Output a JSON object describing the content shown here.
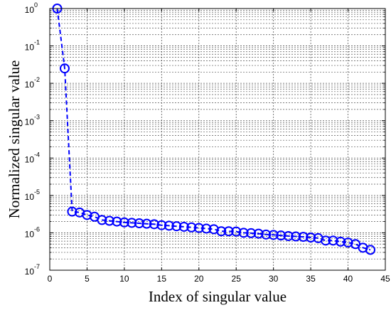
{
  "chart_data": {
    "type": "line",
    "title": "",
    "xlabel": "Index of singular  value",
    "ylabel": "Normalized  singular  value",
    "xlim": [
      0,
      45
    ],
    "ylim": [
      1e-07,
      1
    ],
    "yscale": "log",
    "grid": true,
    "grid_style": "dotted",
    "x_ticks": [
      "0",
      "5",
      "10",
      "15",
      "20",
      "25",
      "30",
      "35",
      "40",
      "45"
    ],
    "y_ticks": [
      {
        "base": "10",
        "exp": "-7"
      },
      {
        "base": "10",
        "exp": "-6"
      },
      {
        "base": "10",
        "exp": "-5"
      },
      {
        "base": "10",
        "exp": "-4"
      },
      {
        "base": "10",
        "exp": "-3"
      },
      {
        "base": "10",
        "exp": "-2"
      },
      {
        "base": "10",
        "exp": "-1"
      },
      {
        "base": "10",
        "exp": "0"
      }
    ],
    "series": [
      {
        "color": "#0000ff",
        "line_style": "dashed",
        "marker": "circle",
        "x": [
          1,
          2,
          3,
          4,
          5,
          6,
          7,
          8,
          9,
          10,
          11,
          12,
          13,
          14,
          15,
          16,
          17,
          18,
          19,
          20,
          21,
          22,
          23,
          24,
          25,
          26,
          27,
          28,
          29,
          30,
          31,
          32,
          33,
          34,
          35,
          36,
          37,
          38,
          39,
          40,
          41,
          42,
          43
        ],
        "values": [
          1.0,
          0.025,
          3.7e-06,
          3.5e-06,
          3e-06,
          2.7e-06,
          2.2e-06,
          2.1e-06,
          2e-06,
          1.9e-06,
          1.85e-06,
          1.8e-06,
          1.75e-06,
          1.7e-06,
          1.6e-06,
          1.55e-06,
          1.5e-06,
          1.45e-06,
          1.4e-06,
          1.35e-06,
          1.3e-06,
          1.25e-06,
          1.1e-06,
          1.1e-06,
          1.08e-06,
          1e-06,
          9.8e-07,
          9.5e-07,
          9e-07,
          8.8e-07,
          8.5e-07,
          8.2e-07,
          8e-07,
          7.8e-07,
          7.5e-07,
          7.2e-07,
          6.2e-07,
          6.2e-07,
          5.8e-07,
          5.5e-07,
          5e-07,
          4e-07,
          3.5e-07
        ]
      }
    ]
  }
}
